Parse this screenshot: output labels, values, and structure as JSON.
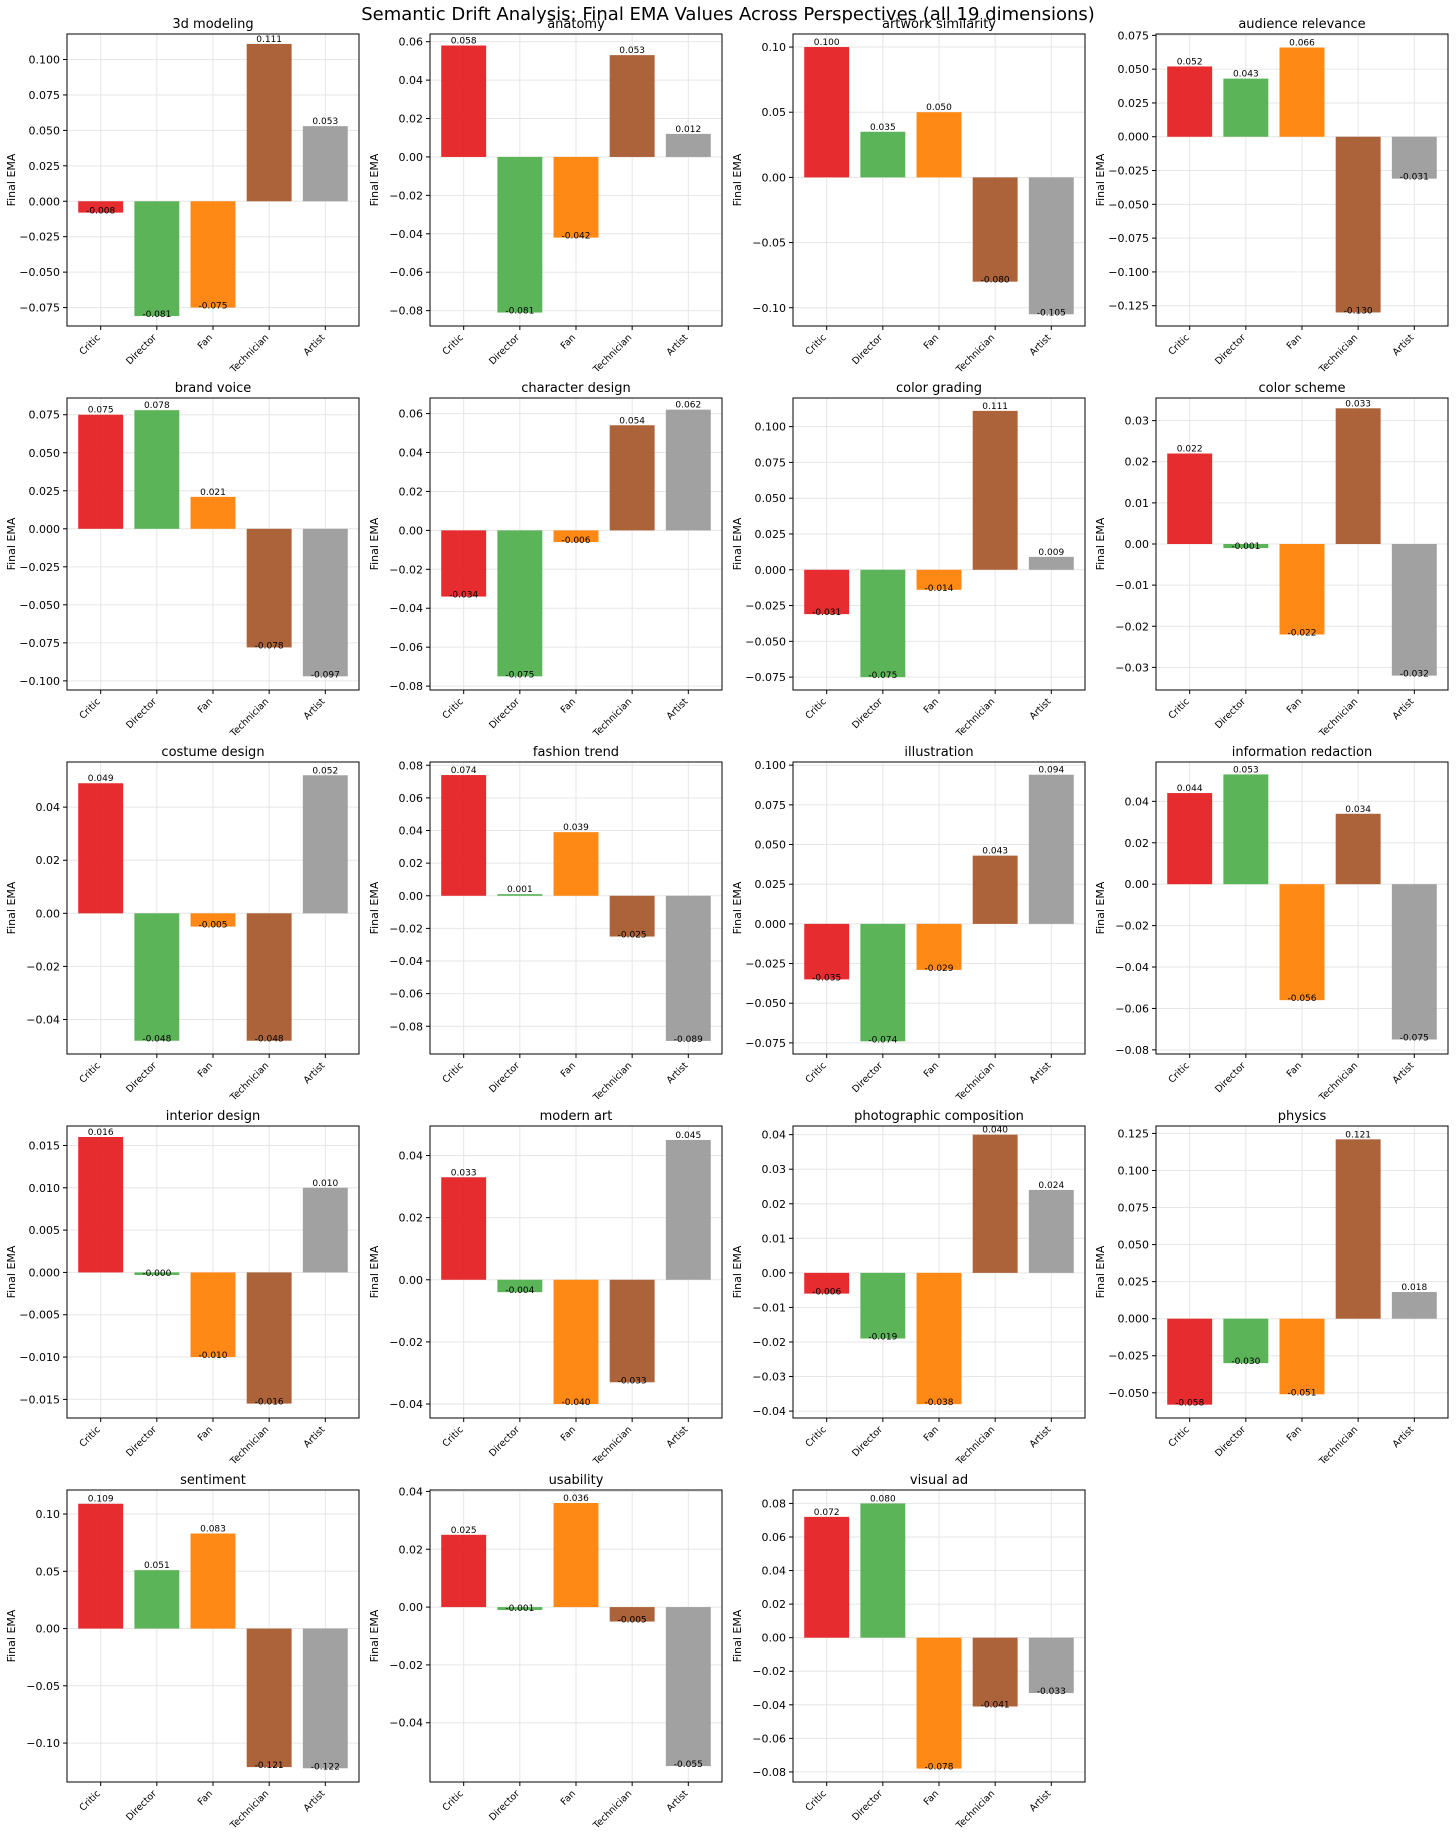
{
  "title": "Semantic Drift Analysis: Final EMA Values Across Perspectives (all 19 dimensions)",
  "colors": {
    "Critic": "#e41a1c",
    "Director": "#4daf4a",
    "Fan": "#ff7f00",
    "Technician": "#a65628",
    "Artist": "#999999"
  },
  "chart_data": [
    {
      "type": "bar",
      "title": "3d modeling",
      "ylabel": "Final EMA",
      "categories": [
        "Critic",
        "Director",
        "Fan",
        "Technician",
        "Artist"
      ],
      "values": [
        -0.008,
        -0.081,
        -0.075,
        0.111,
        0.053
      ],
      "labels": [
        "-0.008",
        "-0.081",
        "-0.075",
        "0.111",
        "0.053"
      ],
      "ylim": [
        -0.088,
        0.118
      ],
      "yticks": [
        -0.075,
        -0.05,
        -0.025,
        0,
        0.025,
        0.05,
        0.075,
        0.1
      ],
      "ytick_labels": [
        "−0.075",
        "−0.050",
        "−0.025",
        "0.000",
        "0.025",
        "0.050",
        "0.075",
        "0.100"
      ],
      "grid": true
    },
    {
      "type": "bar",
      "title": "anatomy",
      "ylabel": "Final EMA",
      "categories": [
        "Critic",
        "Director",
        "Fan",
        "Technician",
        "Artist"
      ],
      "values": [
        0.058,
        -0.081,
        -0.042,
        0.053,
        0.012
      ],
      "labels": [
        "0.058",
        "-0.081",
        "-0.042",
        "0.053",
        "0.012"
      ],
      "ylim": [
        -0.088,
        0.064
      ],
      "yticks": [
        -0.08,
        -0.06,
        -0.04,
        -0.02,
        0,
        0.02,
        0.04,
        0.06
      ],
      "ytick_labels": [
        "−0.08",
        "−0.06",
        "−0.04",
        "−0.02",
        "0.00",
        "0.02",
        "0.04",
        "0.06"
      ],
      "grid": true
    },
    {
      "type": "bar",
      "title": "artwork similarity",
      "ylabel": "Final EMA",
      "categories": [
        "Critic",
        "Director",
        "Fan",
        "Technician",
        "Artist"
      ],
      "values": [
        0.1,
        0.035,
        0.05,
        -0.08,
        -0.105
      ],
      "labels": [
        "0.100",
        "0.035",
        "0.050",
        "-0.080",
        "-0.105"
      ],
      "ylim": [
        -0.114,
        0.11
      ],
      "yticks": [
        -0.1,
        -0.05,
        0,
        0.05,
        0.1
      ],
      "ytick_labels": [
        "−0.10",
        "−0.05",
        "0.00",
        "0.05",
        "0.10"
      ],
      "grid": true
    },
    {
      "type": "bar",
      "title": "audience relevance",
      "ylabel": "Final EMA",
      "categories": [
        "Critic",
        "Director",
        "Fan",
        "Technician",
        "Artist"
      ],
      "values": [
        0.052,
        0.043,
        0.066,
        -0.13,
        -0.031
      ],
      "labels": [
        "0.052",
        "0.043",
        "0.066",
        "-0.130",
        "-0.031"
      ],
      "ylim": [
        -0.14,
        0.076
      ],
      "yticks": [
        -0.125,
        -0.1,
        -0.075,
        -0.05,
        -0.025,
        0,
        0.025,
        0.05,
        0.075
      ],
      "ytick_labels": [
        "−0.125",
        "−0.100",
        "−0.075",
        "−0.050",
        "−0.025",
        "0.000",
        "0.025",
        "0.050",
        "0.075"
      ],
      "grid": true
    },
    {
      "type": "bar",
      "title": "brand voice",
      "ylabel": "Final EMA",
      "categories": [
        "Critic",
        "Director",
        "Fan",
        "Technician",
        "Artist"
      ],
      "values": [
        0.075,
        0.078,
        0.021,
        -0.078,
        -0.097
      ],
      "labels": [
        "0.075",
        "0.078",
        "0.021",
        "-0.078",
        "-0.097"
      ],
      "ylim": [
        -0.106,
        0.086
      ],
      "yticks": [
        -0.1,
        -0.075,
        -0.05,
        -0.025,
        0,
        0.025,
        0.05,
        0.075
      ],
      "ytick_labels": [
        "−0.100",
        "−0.075",
        "−0.050",
        "−0.025",
        "0.000",
        "0.025",
        "0.050",
        "0.075"
      ],
      "grid": true
    },
    {
      "type": "bar",
      "title": "character design",
      "ylabel": "Final EMA",
      "categories": [
        "Critic",
        "Director",
        "Fan",
        "Technician",
        "Artist"
      ],
      "values": [
        -0.034,
        -0.075,
        -0.006,
        0.054,
        0.062
      ],
      "labels": [
        "-0.034",
        "-0.075",
        "-0.006",
        "0.054",
        "0.062"
      ],
      "ylim": [
        -0.082,
        0.068
      ],
      "yticks": [
        -0.08,
        -0.06,
        -0.04,
        -0.02,
        0,
        0.02,
        0.04,
        0.06
      ],
      "ytick_labels": [
        "−0.08",
        "−0.06",
        "−0.04",
        "−0.02",
        "0.00",
        "0.02",
        "0.04",
        "0.06"
      ],
      "grid": true
    },
    {
      "type": "bar",
      "title": "color grading",
      "ylabel": "Final EMA",
      "categories": [
        "Critic",
        "Director",
        "Fan",
        "Technician",
        "Artist"
      ],
      "values": [
        -0.031,
        -0.075,
        -0.014,
        0.111,
        0.009
      ],
      "labels": [
        "-0.031",
        "-0.075",
        "-0.014",
        "0.111",
        "0.009"
      ],
      "ylim": [
        -0.084,
        0.12
      ],
      "yticks": [
        -0.075,
        -0.05,
        -0.025,
        0,
        0.025,
        0.05,
        0.075,
        0.1
      ],
      "ytick_labels": [
        "−0.075",
        "−0.050",
        "−0.025",
        "0.000",
        "0.025",
        "0.050",
        "0.075",
        "0.100"
      ],
      "grid": true
    },
    {
      "type": "bar",
      "title": "color scheme",
      "ylabel": "Final EMA",
      "categories": [
        "Critic",
        "Director",
        "Fan",
        "Technician",
        "Artist"
      ],
      "values": [
        0.022,
        -0.001,
        -0.022,
        0.033,
        -0.032
      ],
      "labels": [
        "0.022",
        "-0.001",
        "-0.022",
        "0.033",
        "-0.032"
      ],
      "ylim": [
        -0.0355,
        0.0355
      ],
      "yticks": [
        -0.03,
        -0.02,
        -0.01,
        0,
        0.01,
        0.02,
        0.03
      ],
      "ytick_labels": [
        "−0.03",
        "−0.02",
        "−0.01",
        "0.00",
        "0.01",
        "0.02",
        "0.03"
      ],
      "grid": true
    },
    {
      "type": "bar",
      "title": "costume design",
      "ylabel": "Final EMA",
      "categories": [
        "Critic",
        "Director",
        "Fan",
        "Technician",
        "Artist"
      ],
      "values": [
        0.049,
        -0.048,
        -0.005,
        -0.048,
        0.052
      ],
      "labels": [
        "0.049",
        "-0.048",
        "-0.005",
        "-0.048",
        "0.052"
      ],
      "ylim": [
        -0.053,
        0.057
      ],
      "yticks": [
        -0.04,
        -0.02,
        0,
        0.02,
        0.04
      ],
      "ytick_labels": [
        "−0.04",
        "−0.02",
        "0.00",
        "0.02",
        "0.04"
      ],
      "grid": true
    },
    {
      "type": "bar",
      "title": "fashion trend",
      "ylabel": "Final EMA",
      "categories": [
        "Critic",
        "Director",
        "Fan",
        "Technician",
        "Artist"
      ],
      "values": [
        0.074,
        0.001,
        0.039,
        -0.025,
        -0.089
      ],
      "labels": [
        "0.074",
        "0.001",
        "0.039",
        "-0.025",
        "-0.089"
      ],
      "ylim": [
        -0.097,
        0.082
      ],
      "yticks": [
        -0.08,
        -0.06,
        -0.04,
        -0.02,
        0,
        0.02,
        0.04,
        0.06,
        0.08
      ],
      "ytick_labels": [
        "−0.08",
        "−0.06",
        "−0.04",
        "−0.02",
        "0.00",
        "0.02",
        "0.04",
        "0.06",
        "0.08"
      ],
      "grid": true
    },
    {
      "type": "bar",
      "title": "illustration",
      "ylabel": "Final EMA",
      "categories": [
        "Critic",
        "Director",
        "Fan",
        "Technician",
        "Artist"
      ],
      "values": [
        -0.035,
        -0.074,
        -0.029,
        0.043,
        0.094
      ],
      "labels": [
        "-0.035",
        "-0.074",
        "-0.029",
        "0.043",
        "0.094"
      ],
      "ylim": [
        -0.082,
        0.102
      ],
      "yticks": [
        -0.075,
        -0.05,
        -0.025,
        0,
        0.025,
        0.05,
        0.075,
        0.1
      ],
      "ytick_labels": [
        "−0.075",
        "−0.050",
        "−0.025",
        "0.000",
        "0.025",
        "0.050",
        "0.075",
        "0.100"
      ],
      "grid": true
    },
    {
      "type": "bar",
      "title": "information redaction",
      "ylabel": "Final EMA",
      "categories": [
        "Critic",
        "Director",
        "Fan",
        "Technician",
        "Artist"
      ],
      "values": [
        0.044,
        0.053,
        -0.056,
        0.034,
        -0.075
      ],
      "labels": [
        "0.044",
        "0.053",
        "-0.056",
        "0.034",
        "-0.075"
      ],
      "ylim": [
        -0.082,
        0.059
      ],
      "yticks": [
        -0.08,
        -0.06,
        -0.04,
        -0.02,
        0,
        0.02,
        0.04
      ],
      "ytick_labels": [
        "−0.08",
        "−0.06",
        "−0.04",
        "−0.02",
        "0.00",
        "0.02",
        "0.04"
      ],
      "grid": true
    },
    {
      "type": "bar",
      "title": "interior design",
      "ylabel": "Final EMA",
      "categories": [
        "Critic",
        "Director",
        "Fan",
        "Technician",
        "Artist"
      ],
      "values": [
        0.016,
        -0.0003,
        -0.01,
        -0.0155,
        0.01
      ],
      "labels": [
        "0.016",
        "-0.000",
        "-0.010",
        "-0.016",
        "0.010"
      ],
      "ylim": [
        -0.0172,
        0.0173
      ],
      "yticks": [
        -0.015,
        -0.01,
        -0.005,
        0,
        0.005,
        0.01,
        0.015
      ],
      "ytick_labels": [
        "−0.015",
        "−0.010",
        "−0.005",
        "0.000",
        "0.005",
        "0.010",
        "0.015"
      ],
      "grid": true
    },
    {
      "type": "bar",
      "title": "modern art",
      "ylabel": "Final EMA",
      "categories": [
        "Critic",
        "Director",
        "Fan",
        "Technician",
        "Artist"
      ],
      "values": [
        0.033,
        -0.004,
        -0.04,
        -0.033,
        0.045
      ],
      "labels": [
        "0.033",
        "-0.004",
        "-0.040",
        "-0.033",
        "0.045"
      ],
      "ylim": [
        -0.0445,
        0.0495
      ],
      "yticks": [
        -0.04,
        -0.02,
        0,
        0.02,
        0.04
      ],
      "ytick_labels": [
        "−0.04",
        "−0.02",
        "0.00",
        "0.02",
        "0.04"
      ],
      "grid": true
    },
    {
      "type": "bar",
      "title": "photographic composition",
      "ylabel": "Final EMA",
      "categories": [
        "Critic",
        "Director",
        "Fan",
        "Technician",
        "Artist"
      ],
      "values": [
        -0.006,
        -0.019,
        -0.038,
        0.04,
        0.024
      ],
      "labels": [
        "-0.006",
        "-0.019",
        "-0.038",
        "0.040",
        "0.024"
      ],
      "ylim": [
        -0.042,
        0.0425
      ],
      "yticks": [
        -0.04,
        -0.03,
        -0.02,
        -0.01,
        0,
        0.01,
        0.02,
        0.03,
        0.04
      ],
      "ytick_labels": [
        "−0.04",
        "−0.03",
        "−0.02",
        "−0.01",
        "0.00",
        "0.01",
        "0.02",
        "0.03",
        "0.04"
      ],
      "grid": true
    },
    {
      "type": "bar",
      "title": "physics",
      "ylabel": "Final EMA",
      "categories": [
        "Critic",
        "Director",
        "Fan",
        "Technician",
        "Artist"
      ],
      "values": [
        -0.058,
        -0.03,
        -0.051,
        0.121,
        0.018
      ],
      "labels": [
        "-0.058",
        "-0.030",
        "-0.051",
        "0.121",
        "0.018"
      ],
      "ylim": [
        -0.067,
        0.13
      ],
      "yticks": [
        -0.05,
        -0.025,
        0,
        0.025,
        0.05,
        0.075,
        0.1,
        0.125
      ],
      "ytick_labels": [
        "−0.050",
        "−0.025",
        "0.000",
        "0.025",
        "0.050",
        "0.075",
        "0.100",
        "0.125"
      ],
      "grid": true
    },
    {
      "type": "bar",
      "title": "sentiment",
      "ylabel": "Final EMA",
      "categories": [
        "Critic",
        "Director",
        "Fan",
        "Technician",
        "Artist"
      ],
      "values": [
        0.109,
        0.051,
        0.083,
        -0.121,
        -0.122
      ],
      "labels": [
        "0.109",
        "0.051",
        "0.083",
        "-0.121",
        "-0.122"
      ],
      "ylim": [
        -0.134,
        0.121
      ],
      "yticks": [
        -0.1,
        -0.05,
        0,
        0.05,
        0.1
      ],
      "ytick_labels": [
        "−0.10",
        "−0.05",
        "0.00",
        "0.05",
        "0.10"
      ],
      "grid": true
    },
    {
      "type": "bar",
      "title": "usability",
      "ylabel": "Final EMA",
      "categories": [
        "Critic",
        "Director",
        "Fan",
        "Technician",
        "Artist"
      ],
      "values": [
        0.025,
        -0.001,
        0.036,
        -0.005,
        -0.055
      ],
      "labels": [
        "0.025",
        "-0.001",
        "0.036",
        "-0.005",
        "-0.055"
      ],
      "ylim": [
        -0.0605,
        0.0405
      ],
      "yticks": [
        -0.04,
        -0.02,
        0,
        0.02,
        0.04
      ],
      "ytick_labels": [
        "−0.04",
        "−0.02",
        "0.00",
        "0.02",
        "0.04"
      ],
      "grid": true
    },
    {
      "type": "bar",
      "title": "visual ad",
      "ylabel": "Final EMA",
      "categories": [
        "Critic",
        "Director",
        "Fan",
        "Technician",
        "Artist"
      ],
      "values": [
        0.072,
        0.08,
        -0.078,
        -0.041,
        -0.033
      ],
      "labels": [
        "0.072",
        "0.080",
        "-0.078",
        "-0.041",
        "-0.033"
      ],
      "ylim": [
        -0.086,
        0.088
      ],
      "yticks": [
        -0.08,
        -0.06,
        -0.04,
        -0.02,
        0,
        0.02,
        0.04,
        0.06,
        0.08
      ],
      "ytick_labels": [
        "−0.08",
        "−0.06",
        "−0.04",
        "−0.02",
        "0.00",
        "0.02",
        "0.04",
        "0.06",
        "0.08"
      ],
      "grid": true
    }
  ]
}
